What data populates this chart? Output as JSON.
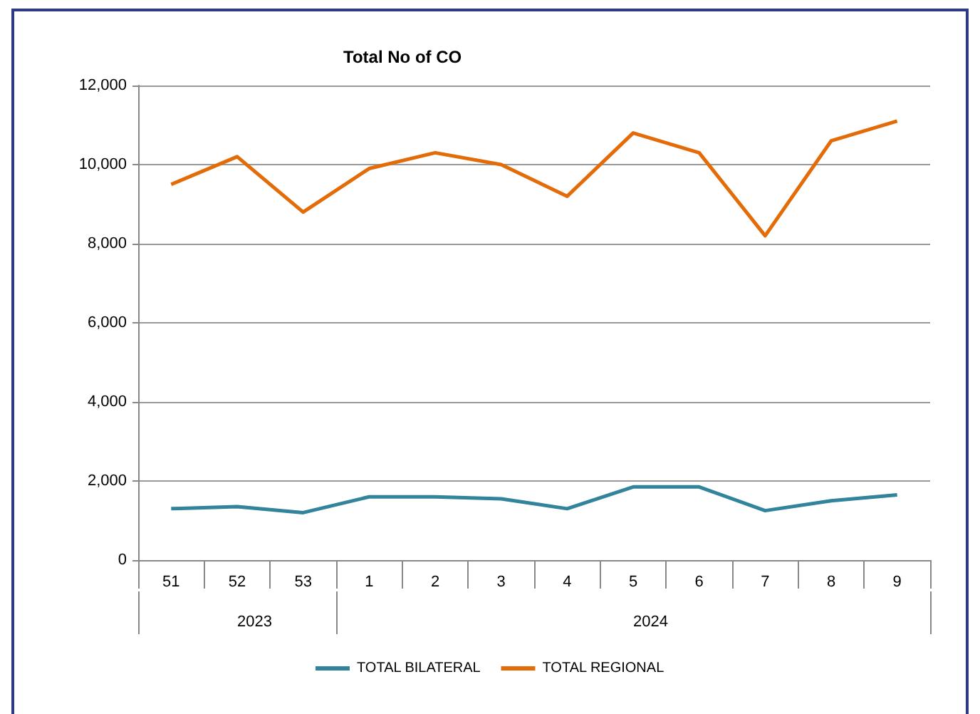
{
  "chart_data": {
    "type": "line",
    "title": "Total No of CO",
    "categories": [
      "51",
      "52",
      "53",
      "1",
      "2",
      "3",
      "4",
      "5",
      "6",
      "7",
      "8",
      "9"
    ],
    "series": [
      {
        "name": "TOTAL BILATERAL",
        "color": "#31849b",
        "values": [
          1300,
          1350,
          1200,
          1600,
          1600,
          1550,
          1300,
          1850,
          1850,
          1250,
          1500,
          1650
        ]
      },
      {
        "name": "TOTAL REGIONAL",
        "color": "#e36c09",
        "values": [
          9500,
          10200,
          8800,
          9900,
          10300,
          10000,
          9200,
          10800,
          10300,
          8200,
          10600,
          11100
        ]
      }
    ],
    "annotations": [
      "2023",
      "2024"
    ],
    "ylim": [
      0,
      12000
    ],
    "yticks": [
      0,
      {
        "value": 2000,
        "label": "2,000"
      },
      {
        "value": 4000,
        "label": "4,000"
      },
      {
        "value": 6000,
        "label": "6,000"
      },
      {
        "value": 8000,
        "label": "8,000"
      },
      {
        "value": 10000,
        "label": "10,000"
      },
      {
        "value": 12000,
        "label": "12,000"
      }
    ],
    "grid": "y",
    "legend": "bottom",
    "marker": "none",
    "line_style": "solid"
  }
}
